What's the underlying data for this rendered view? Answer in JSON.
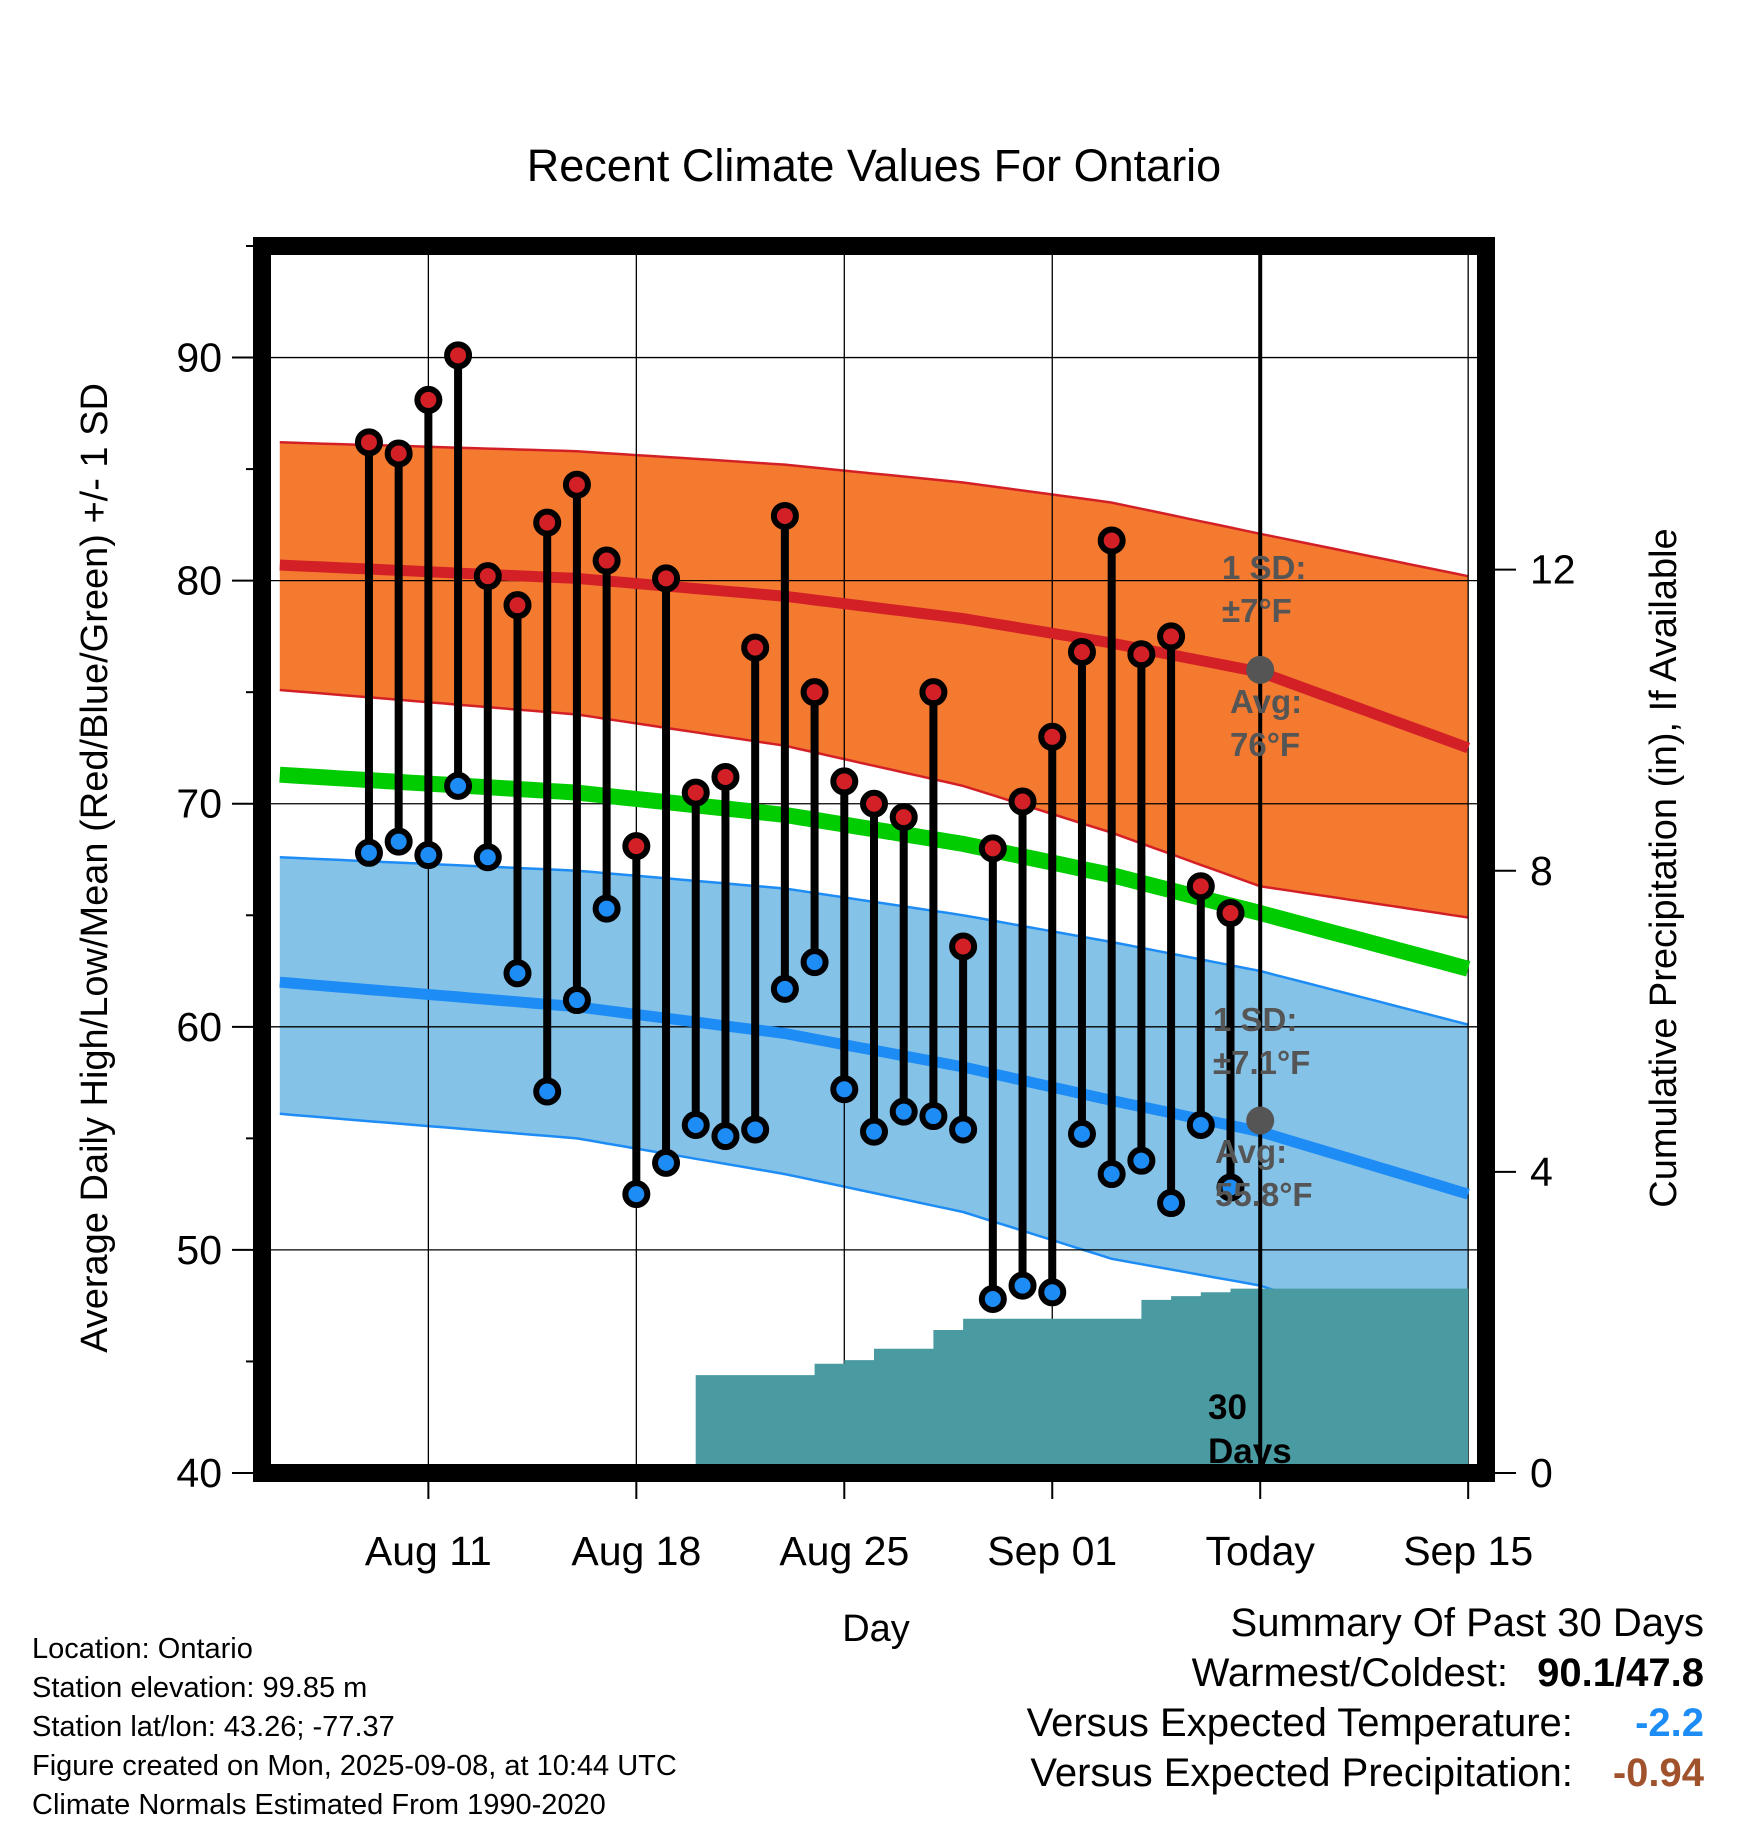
{
  "chart_data": {
    "type": "line",
    "title": "Recent Climate Values For Ontario",
    "xlabel": "Day",
    "ylabel": "Average Daily High/Low/Mean (Red/Blue/Green) +/- 1 SD",
    "y2label": "Cumulative Precipitation (in), If Available",
    "xlim": [
      -2.6,
      38.6
    ],
    "ylim": [
      40,
      95
    ],
    "y2lim": [
      0,
      16.3
    ],
    "yticks": [
      "40",
      "50",
      "60",
      "70",
      "80",
      "90"
    ],
    "y2ticks": [
      "0",
      "4",
      "8",
      "12"
    ],
    "xtick_days": [
      3,
      10,
      17,
      24,
      31,
      38
    ],
    "xticks": [
      "Aug 11",
      "Aug 18",
      "Aug 25",
      "Sep 01",
      "Today",
      "Sep 15"
    ],
    "normals": {
      "x": [
        -2,
        8,
        15,
        21,
        26,
        31,
        38
      ],
      "high_mean": [
        80.7,
        80.1,
        79.3,
        78.3,
        77.2,
        75.9,
        72.5
      ],
      "high_upper": [
        86.2,
        85.8,
        85.2,
        84.4,
        83.5,
        82.1,
        80.2
      ],
      "high_lower": [
        75.1,
        74.0,
        72.6,
        70.8,
        68.7,
        66.3,
        64.9
      ],
      "mean": [
        71.3,
        70.5,
        69.5,
        68.2,
        66.8,
        65.1,
        62.6
      ],
      "low_mean": [
        62.0,
        60.9,
        59.7,
        58.2,
        56.7,
        55.3,
        52.5
      ],
      "low_upper": [
        67.6,
        67.0,
        66.2,
        65.0,
        63.8,
        62.5,
        60.1
      ],
      "low_lower": [
        56.1,
        55.0,
        53.4,
        51.7,
        49.6,
        48.4,
        45.3
      ]
    },
    "series": [
      {
        "name": "High",
        "color": "#d32027",
        "x": [
          1,
          2,
          3,
          4,
          5,
          6,
          7,
          8,
          9,
          10,
          11,
          12,
          13,
          14,
          15,
          16,
          17,
          18,
          19,
          20,
          21,
          22,
          23,
          24,
          25,
          26,
          27,
          28,
          29
        ],
        "values": [
          86.2,
          85.7,
          88.1,
          90.1,
          80.2,
          78.9,
          82.6,
          84.3,
          80.9,
          68.1,
          80.1,
          70.5,
          71.2,
          77.0,
          82.9,
          75.0,
          71.0,
          70.0,
          69.4,
          75.0,
          63.6,
          68.0,
          70.1,
          73.0,
          76.8,
          81.8,
          76.7,
          77.5,
          66.3
        ]
      },
      {
        "name": "Low",
        "color": "#1e8cf5",
        "x": [
          1,
          2,
          3,
          4,
          5,
          6,
          7,
          8,
          9,
          10,
          11,
          12,
          13,
          14,
          15,
          16,
          17,
          18,
          19,
          20,
          21,
          22,
          23,
          24,
          25,
          26,
          27,
          28,
          29
        ],
        "values": [
          67.8,
          68.3,
          67.7,
          70.8,
          67.6,
          62.4,
          57.1,
          61.2,
          65.3,
          52.5,
          53.9,
          55.6,
          55.1,
          55.4,
          61.7,
          62.9,
          57.2,
          55.3,
          56.2,
          56.0,
          55.4,
          47.8,
          48.4,
          48.1,
          55.2,
          53.4,
          54.0,
          52.1,
          55.6
        ]
      },
      {
        "name": "Precip",
        "color": "#4a9aa2",
        "x": [
          -2,
          3,
          5,
          10,
          11,
          12,
          15,
          16,
          17,
          18,
          19,
          20,
          21,
          22,
          24,
          26,
          27,
          28,
          29,
          30,
          31,
          38
        ],
        "values": [
          0,
          0,
          0.08,
          0.08,
          0.1,
          1.3,
          1.3,
          1.45,
          1.5,
          1.65,
          1.65,
          1.9,
          2.05,
          2.05,
          2.05,
          2.05,
          2.3,
          2.35,
          2.4,
          2.45,
          2.45,
          2.45
        ]
      }
    ],
    "extra_points": [
      {
        "x": 30,
        "high": 65.1,
        "low": 52.8
      }
    ],
    "today_markers": {
      "x": 31,
      "high_avg": 76,
      "low_avg": 55.8
    },
    "annotations": {
      "high_sd_label": "1 SD:",
      "high_sd_value": "±7°F",
      "high_avg_label": "Avg:",
      "high_avg_value": "76°F",
      "low_sd_label": "1 SD:",
      "low_sd_value": "±7.1°F",
      "low_avg_label": "Avg:",
      "low_avg_value": "55.8°F",
      "days_label_1": "30",
      "days_label_2": "Days"
    },
    "colors": {
      "high_band": "#f47a30",
      "high_line": "#d32027",
      "mean_line": "#00cc00",
      "low_band": "#85c2e8",
      "low_line": "#1e8cf5",
      "precip": "#4a9aa2"
    },
    "grid": true
  },
  "info": {
    "location": "Location: Ontario",
    "elevation": "Station elevation: 99.85 m",
    "latlon": "Station lat/lon: 43.26; -77.37",
    "created": "Figure created on Mon, 2025-09-08, at 10:44 UTC",
    "normals": "Climate Normals Estimated From 1990-2020"
  },
  "summary": {
    "heading": "Summary Of Past 30 Days",
    "warmest_label": "Warmest/Coldest:",
    "warmest_value": "90.1",
    "slash": "/",
    "coldest_value": "47.8",
    "temp_label": "Versus Expected Temperature:",
    "temp_value": "-2.2",
    "temp_color": "#1e8cf5",
    "precip_label": "Versus Expected Precipitation:",
    "precip_value": "-0.94",
    "precip_color": "#a0522d"
  }
}
